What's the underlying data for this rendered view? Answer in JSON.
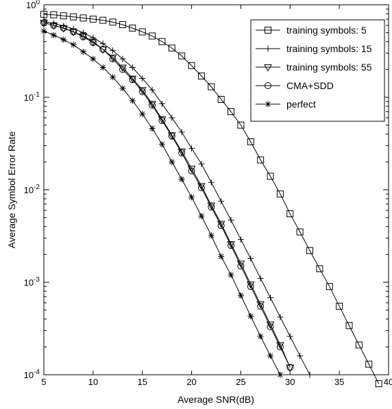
{
  "chart_data": {
    "type": "line",
    "title": "",
    "xlabel": "Average SNR(dB)",
    "ylabel": "Average Symbol Error Rate",
    "xlim": [
      5,
      40
    ],
    "ylim": [
      0.0001,
      1
    ],
    "yscale": "log",
    "x_ticks": [
      5,
      10,
      15,
      20,
      25,
      30,
      35,
      40
    ],
    "y_ticks": [
      {
        "value": 1,
        "base": "10",
        "exp": "0"
      },
      {
        "value": 0.1,
        "base": "10",
        "exp": "-1"
      },
      {
        "value": 0.01,
        "base": "10",
        "exp": "-2"
      },
      {
        "value": 0.001,
        "base": "10",
        "exp": "-3"
      },
      {
        "value": 0.0001,
        "base": "10",
        "exp": "-4"
      }
    ],
    "grid": false,
    "legend_position": "top-right",
    "series": [
      {
        "name": "training symbols: 5",
        "marker": "square",
        "x": [
          5,
          6,
          7,
          8,
          9,
          10,
          11,
          12,
          13,
          14,
          15,
          16,
          17,
          18,
          19,
          20,
          21,
          22,
          23,
          24,
          25,
          26,
          27,
          28,
          29,
          30,
          31,
          32,
          33,
          34,
          35,
          36,
          37,
          38,
          39
        ],
        "y": [
          0.79,
          0.78,
          0.76,
          0.74,
          0.72,
          0.7,
          0.68,
          0.65,
          0.61,
          0.56,
          0.51,
          0.46,
          0.4,
          0.34,
          0.28,
          0.22,
          0.17,
          0.13,
          0.095,
          0.07,
          0.05,
          0.033,
          0.021,
          0.014,
          0.009,
          0.0055,
          0.0035,
          0.0022,
          0.0014,
          0.0009,
          0.00055,
          0.00034,
          0.00021,
          0.00013,
          8e-05
        ]
      },
      {
        "name": "training symbols: 15",
        "marker": "plus",
        "x": [
          5,
          6,
          7,
          8,
          9,
          10,
          11,
          12,
          13,
          14,
          15,
          16,
          17,
          18,
          19,
          20,
          21,
          22,
          23,
          24,
          25,
          26,
          27,
          28,
          29,
          30,
          31,
          32
        ],
        "y": [
          0.66,
          0.63,
          0.59,
          0.55,
          0.5,
          0.44,
          0.38,
          0.32,
          0.26,
          0.21,
          0.16,
          0.12,
          0.085,
          0.06,
          0.042,
          0.028,
          0.019,
          0.012,
          0.0075,
          0.0047,
          0.0029,
          0.0018,
          0.0011,
          0.00068,
          0.00042,
          0.00026,
          0.00016,
          0.0001
        ]
      },
      {
        "name": "training symbols: 55",
        "marker": "triangle",
        "x": [
          5,
          6,
          7,
          8,
          9,
          10,
          11,
          12,
          13,
          14,
          15,
          16,
          17,
          18,
          19,
          20,
          21,
          22,
          23,
          24,
          25,
          26,
          27,
          28,
          29,
          30
        ],
        "y": [
          0.64,
          0.6,
          0.56,
          0.51,
          0.46,
          0.4,
          0.33,
          0.27,
          0.21,
          0.16,
          0.12,
          0.085,
          0.058,
          0.039,
          0.026,
          0.017,
          0.011,
          0.0068,
          0.0043,
          0.0026,
          0.0016,
          0.00095,
          0.00058,
          0.00035,
          0.00021,
          0.00012
        ]
      },
      {
        "name": "CMA+SDD",
        "marker": "circle",
        "x": [
          5,
          6,
          7,
          8,
          9,
          10,
          11,
          12,
          13,
          14,
          15,
          16,
          17,
          18,
          19,
          20,
          21,
          22,
          23,
          24,
          25,
          26,
          27,
          28,
          29,
          30
        ],
        "y": [
          0.64,
          0.6,
          0.56,
          0.51,
          0.45,
          0.39,
          0.33,
          0.26,
          0.2,
          0.155,
          0.115,
          0.082,
          0.056,
          0.038,
          0.025,
          0.016,
          0.0105,
          0.0065,
          0.0041,
          0.0025,
          0.0015,
          0.0009,
          0.00055,
          0.00033,
          0.0002,
          0.00012
        ]
      },
      {
        "name": "perfect",
        "marker": "star",
        "x": [
          5,
          6,
          7,
          8,
          9,
          10,
          11,
          12,
          13,
          14,
          15,
          16,
          17,
          18,
          19,
          20,
          21,
          22,
          23,
          24,
          25,
          26,
          27,
          28,
          29
        ],
        "y": [
          0.52,
          0.47,
          0.42,
          0.37,
          0.31,
          0.26,
          0.21,
          0.165,
          0.125,
          0.092,
          0.066,
          0.046,
          0.031,
          0.02,
          0.013,
          0.0083,
          0.0052,
          0.0032,
          0.0019,
          0.0012,
          0.00072,
          0.00043,
          0.00026,
          0.00016,
          0.0001
        ]
      }
    ]
  }
}
